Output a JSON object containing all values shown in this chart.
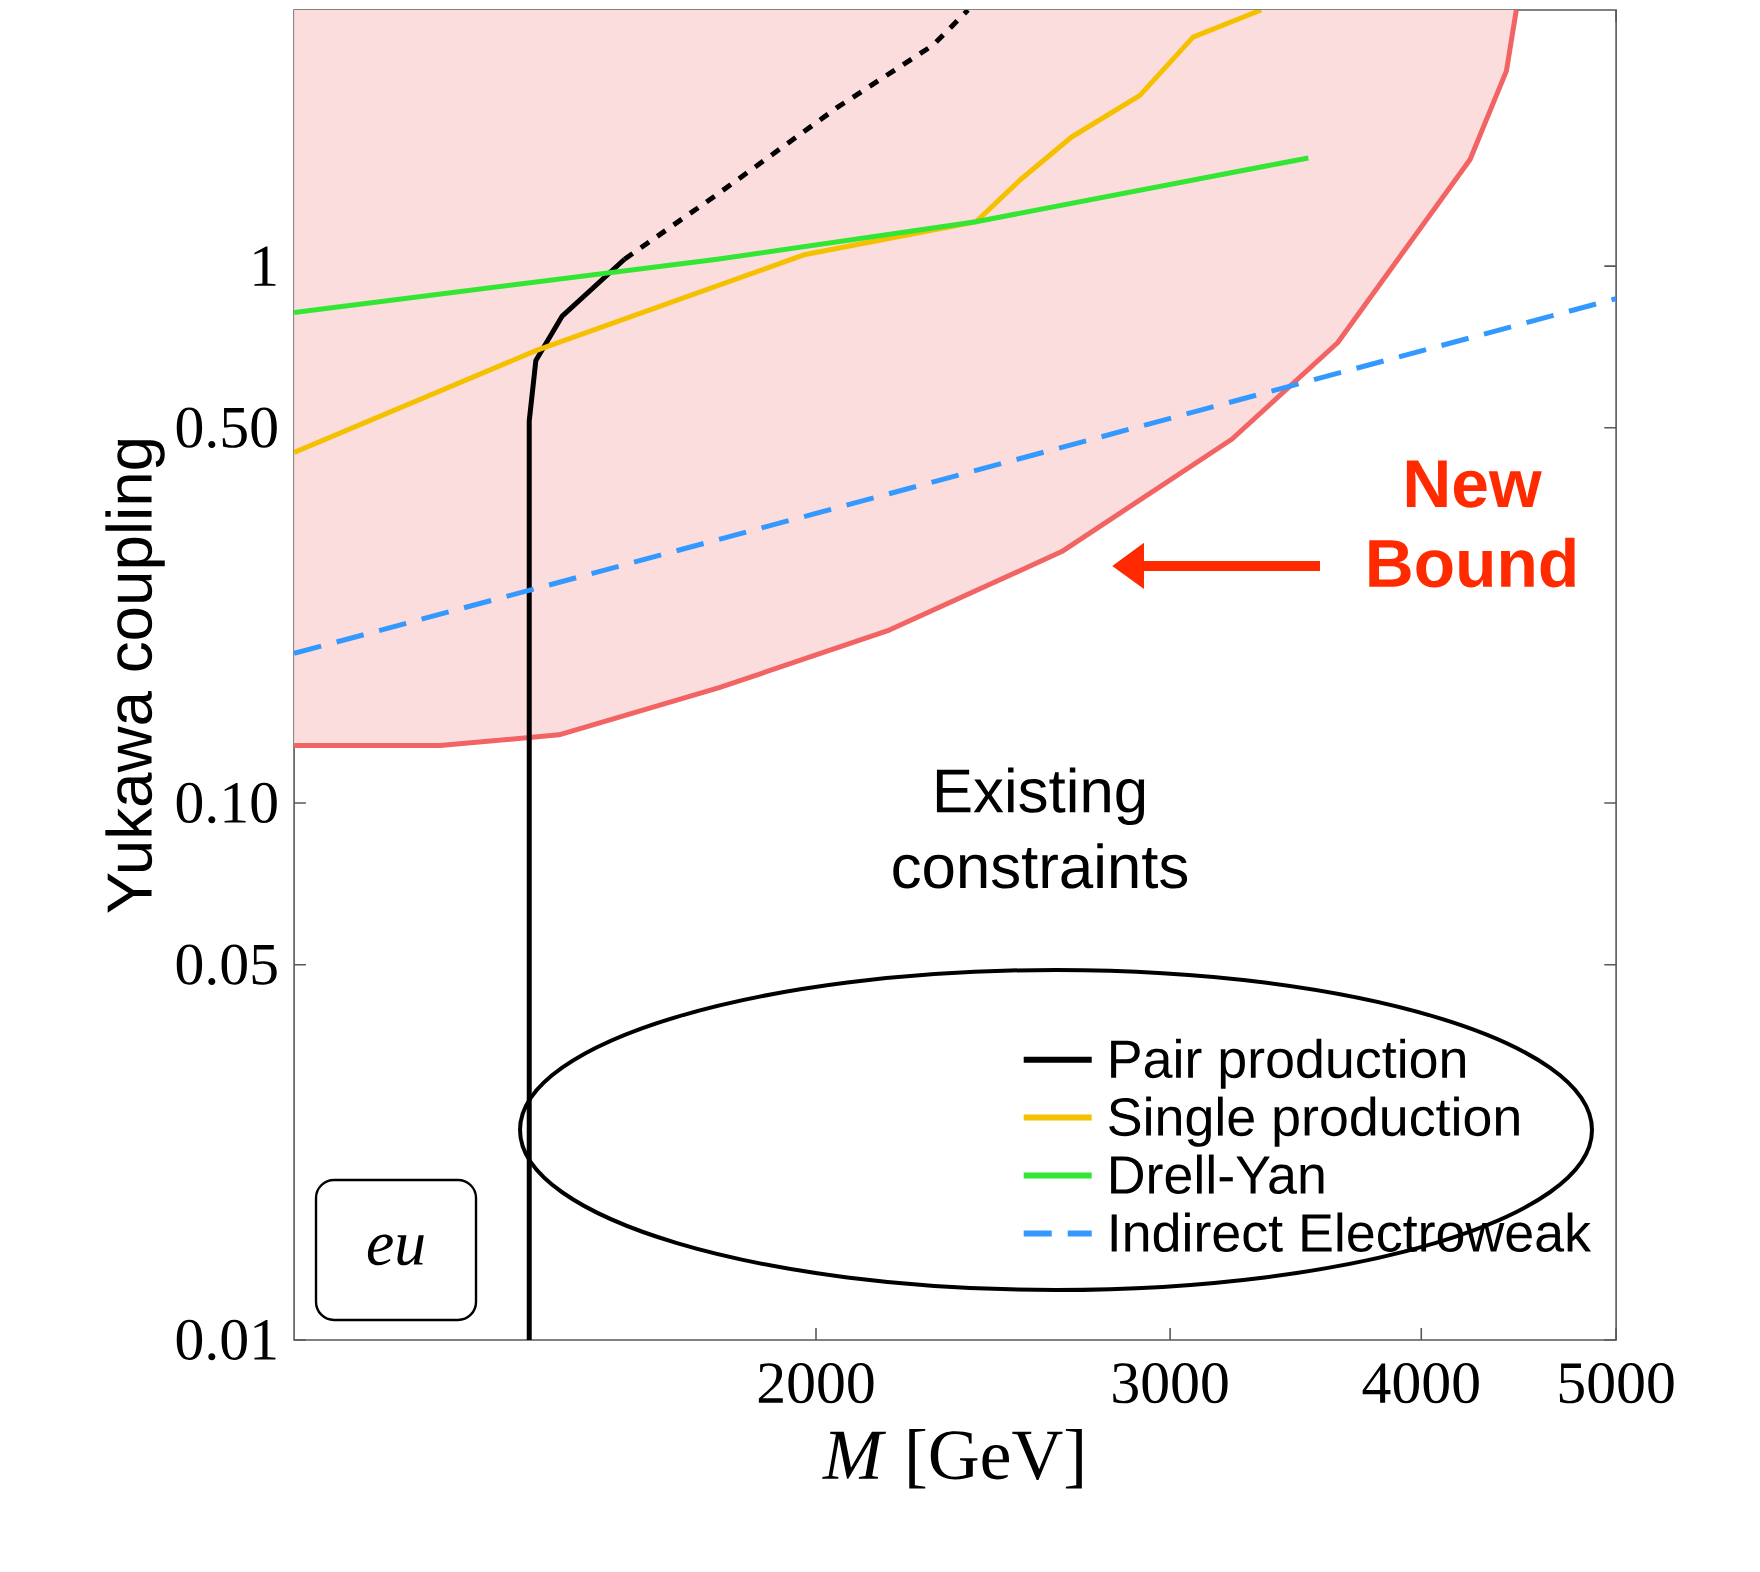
{
  "chart_data": {
    "type": "line",
    "xlabel": "*M*  [GeV]",
    "ylabel": "Yukawa coupling",
    "log": "xy",
    "xlim": [
      1100,
      5000
    ],
    "ylim": [
      0.01,
      3
    ],
    "xticks": [
      2000,
      3000,
      4000,
      5000
    ],
    "yticks": [
      0.01,
      0.05,
      {
        "value": 0.1,
        "label": "0.10"
      },
      {
        "value": 0.5,
        "label": "0.50"
      },
      1
    ],
    "legend": "bottom right",
    "grid": false,
    "marker": "none",
    "line_style": "solid",
    "series": [
      {
        "color": "#f26464",
        "x": [
          1100,
          1300,
          1490,
          1790,
          2175,
          2650,
          3220,
          3635,
          4230,
          4410,
          4460
        ],
        "values": [
          0.128,
          0.128,
          0.134,
          0.164,
          0.21,
          0.294,
          0.476,
          0.72,
          1.58,
          2.31,
          3.0
        ],
        "lower": [
          0.128,
          0.128,
          0.134,
          0.164,
          0.21,
          0.294,
          0.476,
          0.72,
          1.58,
          2.31,
          3.0
        ],
        "upper": [
          3,
          3,
          3,
          3,
          3,
          3,
          3,
          3,
          3,
          3,
          3
        ]
      },
      {
        "name": "Pair production",
        "color": "#000000",
        "x": [
          1440,
          1440,
          1451,
          1495,
          1606
        ],
        "values": [
          0.01,
          0.515,
          0.667,
          0.806,
          1.03
        ]
      },
      {
        "color": "#000000",
        "line_style": "dotted",
        "x": [
          1606,
          1786,
          2051,
          2287,
          2380
        ],
        "values": [
          1.03,
          1.36,
          1.98,
          2.58,
          3.0
        ]
      },
      {
        "name": "Single production",
        "color": "#f5c000",
        "x": [
          1100,
          1451,
          1973,
          2402,
          2528,
          2680,
          2898,
          3080,
          3330
        ],
        "values": [
          0.45,
          0.696,
          1.05,
          1.21,
          1.45,
          1.74,
          2.08,
          2.67,
          3.0
        ]
      },
      {
        "name": "Drell-Yan",
        "color": "#33e633",
        "x": [
          1100,
          1786,
          2402,
          3390,
          3515
        ],
        "values": [
          0.82,
          1.03,
          1.21,
          1.55,
          1.59
        ]
      },
      {
        "name": "Indirect Electroweak",
        "color": "#3399ff",
        "line_style": "dashed",
        "x": [
          1100,
          5000
        ],
        "values": [
          0.19,
          0.87
        ]
      }
    ],
    "annotations": [
      "New Bound",
      "Existing constraints",
      "eu"
    ]
  }
}
